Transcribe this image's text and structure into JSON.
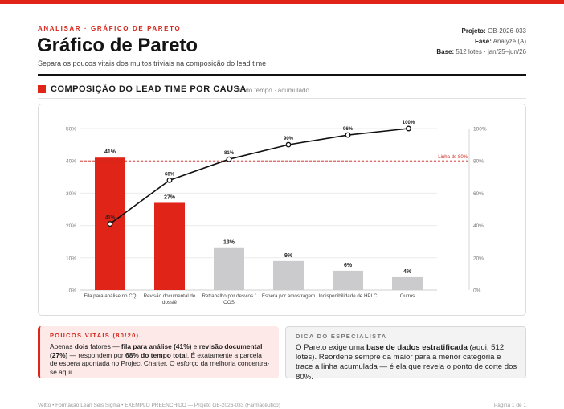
{
  "header": {
    "eyebrow": "ANALISAR · GRÁFICO DE PARETO",
    "title": "Gráfico de Pareto",
    "subtitle": "Separa os poucos vitais dos muitos triviais na composição do lead time",
    "meta": [
      {
        "label": "Projeto:",
        "value": "GB-2026-033"
      },
      {
        "label": "Fase:",
        "value": "Analyze (A)"
      },
      {
        "label": "Base:",
        "value": "512 lotes · jan/25–jun/26"
      }
    ]
  },
  "section": {
    "title": "COMPOSIÇÃO DO LEAD TIME POR CAUSA",
    "note": "% do tempo · acumulado"
  },
  "chart_data": {
    "type": "bar",
    "categories": [
      "Fila para análise no CQ",
      "Revisão documental do dossiê",
      "Retrabalho por desvios / OOS",
      "Espera por amostragem",
      "Indisponibilidade de HPLC",
      "Outros"
    ],
    "category_lines": [
      [
        "Fila para análise no CQ"
      ],
      [
        "Revisão documental do",
        "dossiê"
      ],
      [
        "Retrabalho por desvios /",
        "OOS"
      ],
      [
        "Espera por amostragem"
      ],
      [
        "Indisponibilidade de HPLC"
      ],
      [
        "Outros"
      ]
    ],
    "series": [
      {
        "values": [
          41,
          27,
          13,
          9,
          6,
          4
        ],
        "labels": [
          "41%",
          "27%",
          "13%",
          "9%",
          "6%",
          "4%"
        ],
        "axis": "left"
      },
      {
        "values": [
          41,
          68,
          81,
          90,
          96,
          100
        ],
        "labels": [
          "41%",
          "68%",
          "81%",
          "90%",
          "96%",
          "100%"
        ],
        "axis": "right"
      }
    ],
    "highlight_count": 2,
    "ylim": [
      0,
      50
    ],
    "y2lim": [
      0,
      100
    ],
    "yticks": [
      "0%",
      "10%",
      "20%",
      "30%",
      "40%",
      "50%"
    ],
    "y2ticks": [
      "0%",
      "20%",
      "40%",
      "60%",
      "80%",
      "100%"
    ],
    "reference_line": {
      "value": 80,
      "axis": "right",
      "label": "Linha de 80%"
    },
    "colors": {
      "vital": "#e02418",
      "trivial": "#cbcbcd",
      "line": "#111111",
      "reference": "#d4241a"
    },
    "grid": true
  },
  "cards": {
    "vital": {
      "title": "POUCOS VITAIS (80/20)",
      "segments": [
        {
          "t": "Apenas ",
          "b": false
        },
        {
          "t": "dois",
          "b": true
        },
        {
          "t": " fatores — ",
          "b": false
        },
        {
          "t": "fila para análise (41%)",
          "b": true
        },
        {
          "t": " e ",
          "b": false
        },
        {
          "t": "revisão documental (27%)",
          "b": true
        },
        {
          "t": " — respondem por ",
          "b": false
        },
        {
          "t": "68% do tempo total",
          "b": true
        },
        {
          "t": ". É exatamente a parcela de espera apontada no Project Charter. O esforço da melhoria concentra-se aqui.",
          "b": false
        }
      ]
    },
    "tip": {
      "title": "DICA DO ESPECIALISTA",
      "segments": [
        {
          "t": "O Pareto exige uma ",
          "b": false
        },
        {
          "t": "base de dados estratificada",
          "b": true
        },
        {
          "t": " (aqui, 512 lotes). Reordene sempre da maior para a menor categoria e trace a linha acumulada — é ela que revela o ponto de corte dos 80%.",
          "b": false
        }
      ]
    }
  },
  "footer": {
    "left": "Veltto  •  Formação Lean Seis Sigma  •  EXEMPLO PREENCHIDO — Projeto GB-2026-033 (Farmacêutico)",
    "right": "Página 1 de 1"
  }
}
